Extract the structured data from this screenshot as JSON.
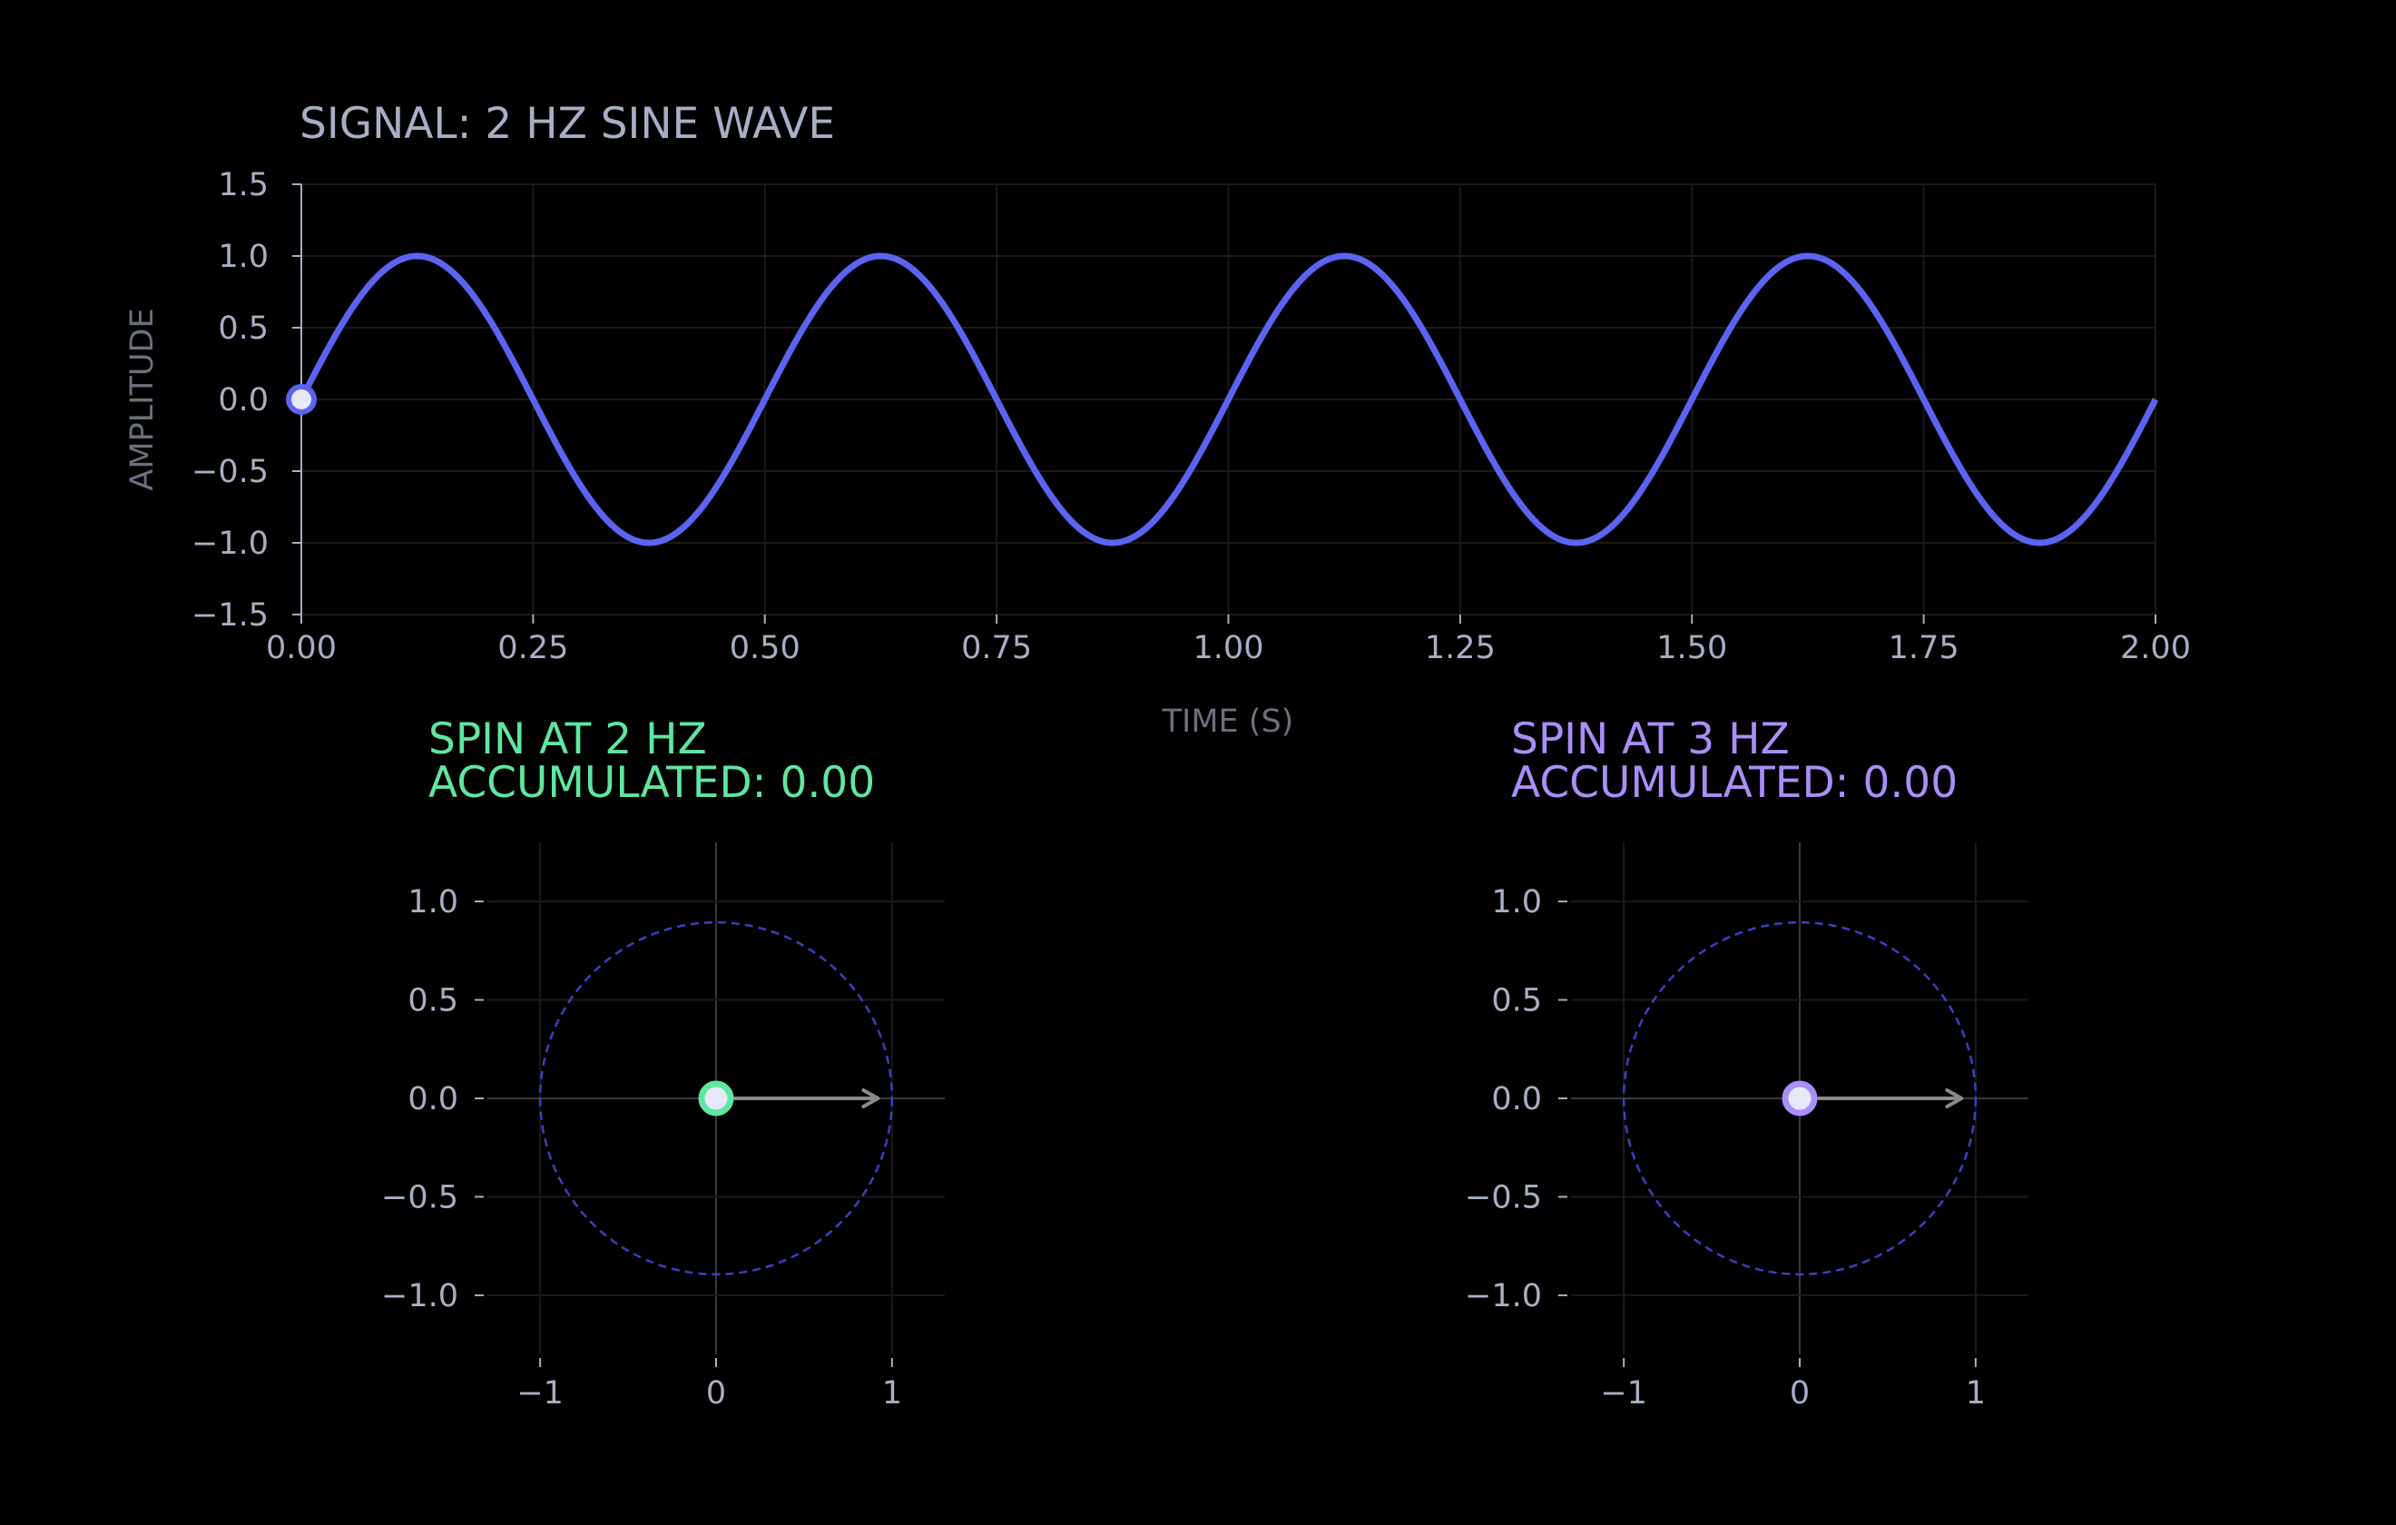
{
  "colors": {
    "background": "#000000",
    "signal": "#5a64f0",
    "spin_2hz": "#5fe6a0",
    "spin_3hz": "#a98ef8",
    "unit_circle": "#3a40c0",
    "arrow": "#8a8a8a",
    "tick_text": "#a8aec4",
    "axis_label": "#6b6f7d",
    "grid": "#1a1a1a"
  },
  "chart_data": [
    {
      "type": "line",
      "title": "SIGNAL: 2 HZ SINE WAVE",
      "xlabel": "TIME (S)",
      "ylabel": "AMPLITUDE",
      "xlim": [
        0,
        2
      ],
      "ylim": [
        -1.5,
        1.5
      ],
      "x_ticks": [
        "0.00",
        "0.25",
        "0.50",
        "0.75",
        "1.00",
        "1.25",
        "1.50",
        "1.75",
        "2.00"
      ],
      "y_ticks": [
        "1.5",
        "1.0",
        "0.5",
        "0.0",
        "−0.5",
        "−1.0",
        "−1.5"
      ],
      "grid": true,
      "series": [
        {
          "function": "sin(2*pi*2*t)",
          "frequency_hz": 2,
          "amplitude": 1.0,
          "x_start": 0,
          "x_end": 2
        }
      ],
      "marker": {
        "x": 0.0,
        "y": 0.0
      }
    },
    {
      "type": "scatter",
      "title_line1": "SPIN AT 2 HZ",
      "title_line2": "ACCUMULATED: 0.00",
      "xlim": [
        -1.3,
        1.3
      ],
      "ylim": [
        -1.3,
        1.3
      ],
      "x_ticks": [
        "−1",
        "0",
        "1"
      ],
      "y_ticks": [
        "1.0",
        "0.5",
        "0.0",
        "−0.5",
        "−1.0"
      ],
      "grid": true,
      "unit_circle_radius": 1,
      "point": {
        "x": 0.0,
        "y": 0.0
      },
      "arrow": {
        "from": [
          0,
          0
        ],
        "to": [
          0.92,
          0
        ]
      }
    },
    {
      "type": "scatter",
      "title_line1": "SPIN AT 3 HZ",
      "title_line2": "ACCUMULATED: 0.00",
      "xlim": [
        -1.3,
        1.3
      ],
      "ylim": [
        -1.3,
        1.3
      ],
      "x_ticks": [
        "−1",
        "0",
        "1"
      ],
      "y_ticks": [
        "1.0",
        "0.5",
        "0.0",
        "−0.5",
        "−1.0"
      ],
      "grid": true,
      "unit_circle_radius": 1,
      "point": {
        "x": 0.0,
        "y": 0.0
      },
      "arrow": {
        "from": [
          0,
          0
        ],
        "to": [
          0.92,
          0
        ]
      }
    }
  ]
}
